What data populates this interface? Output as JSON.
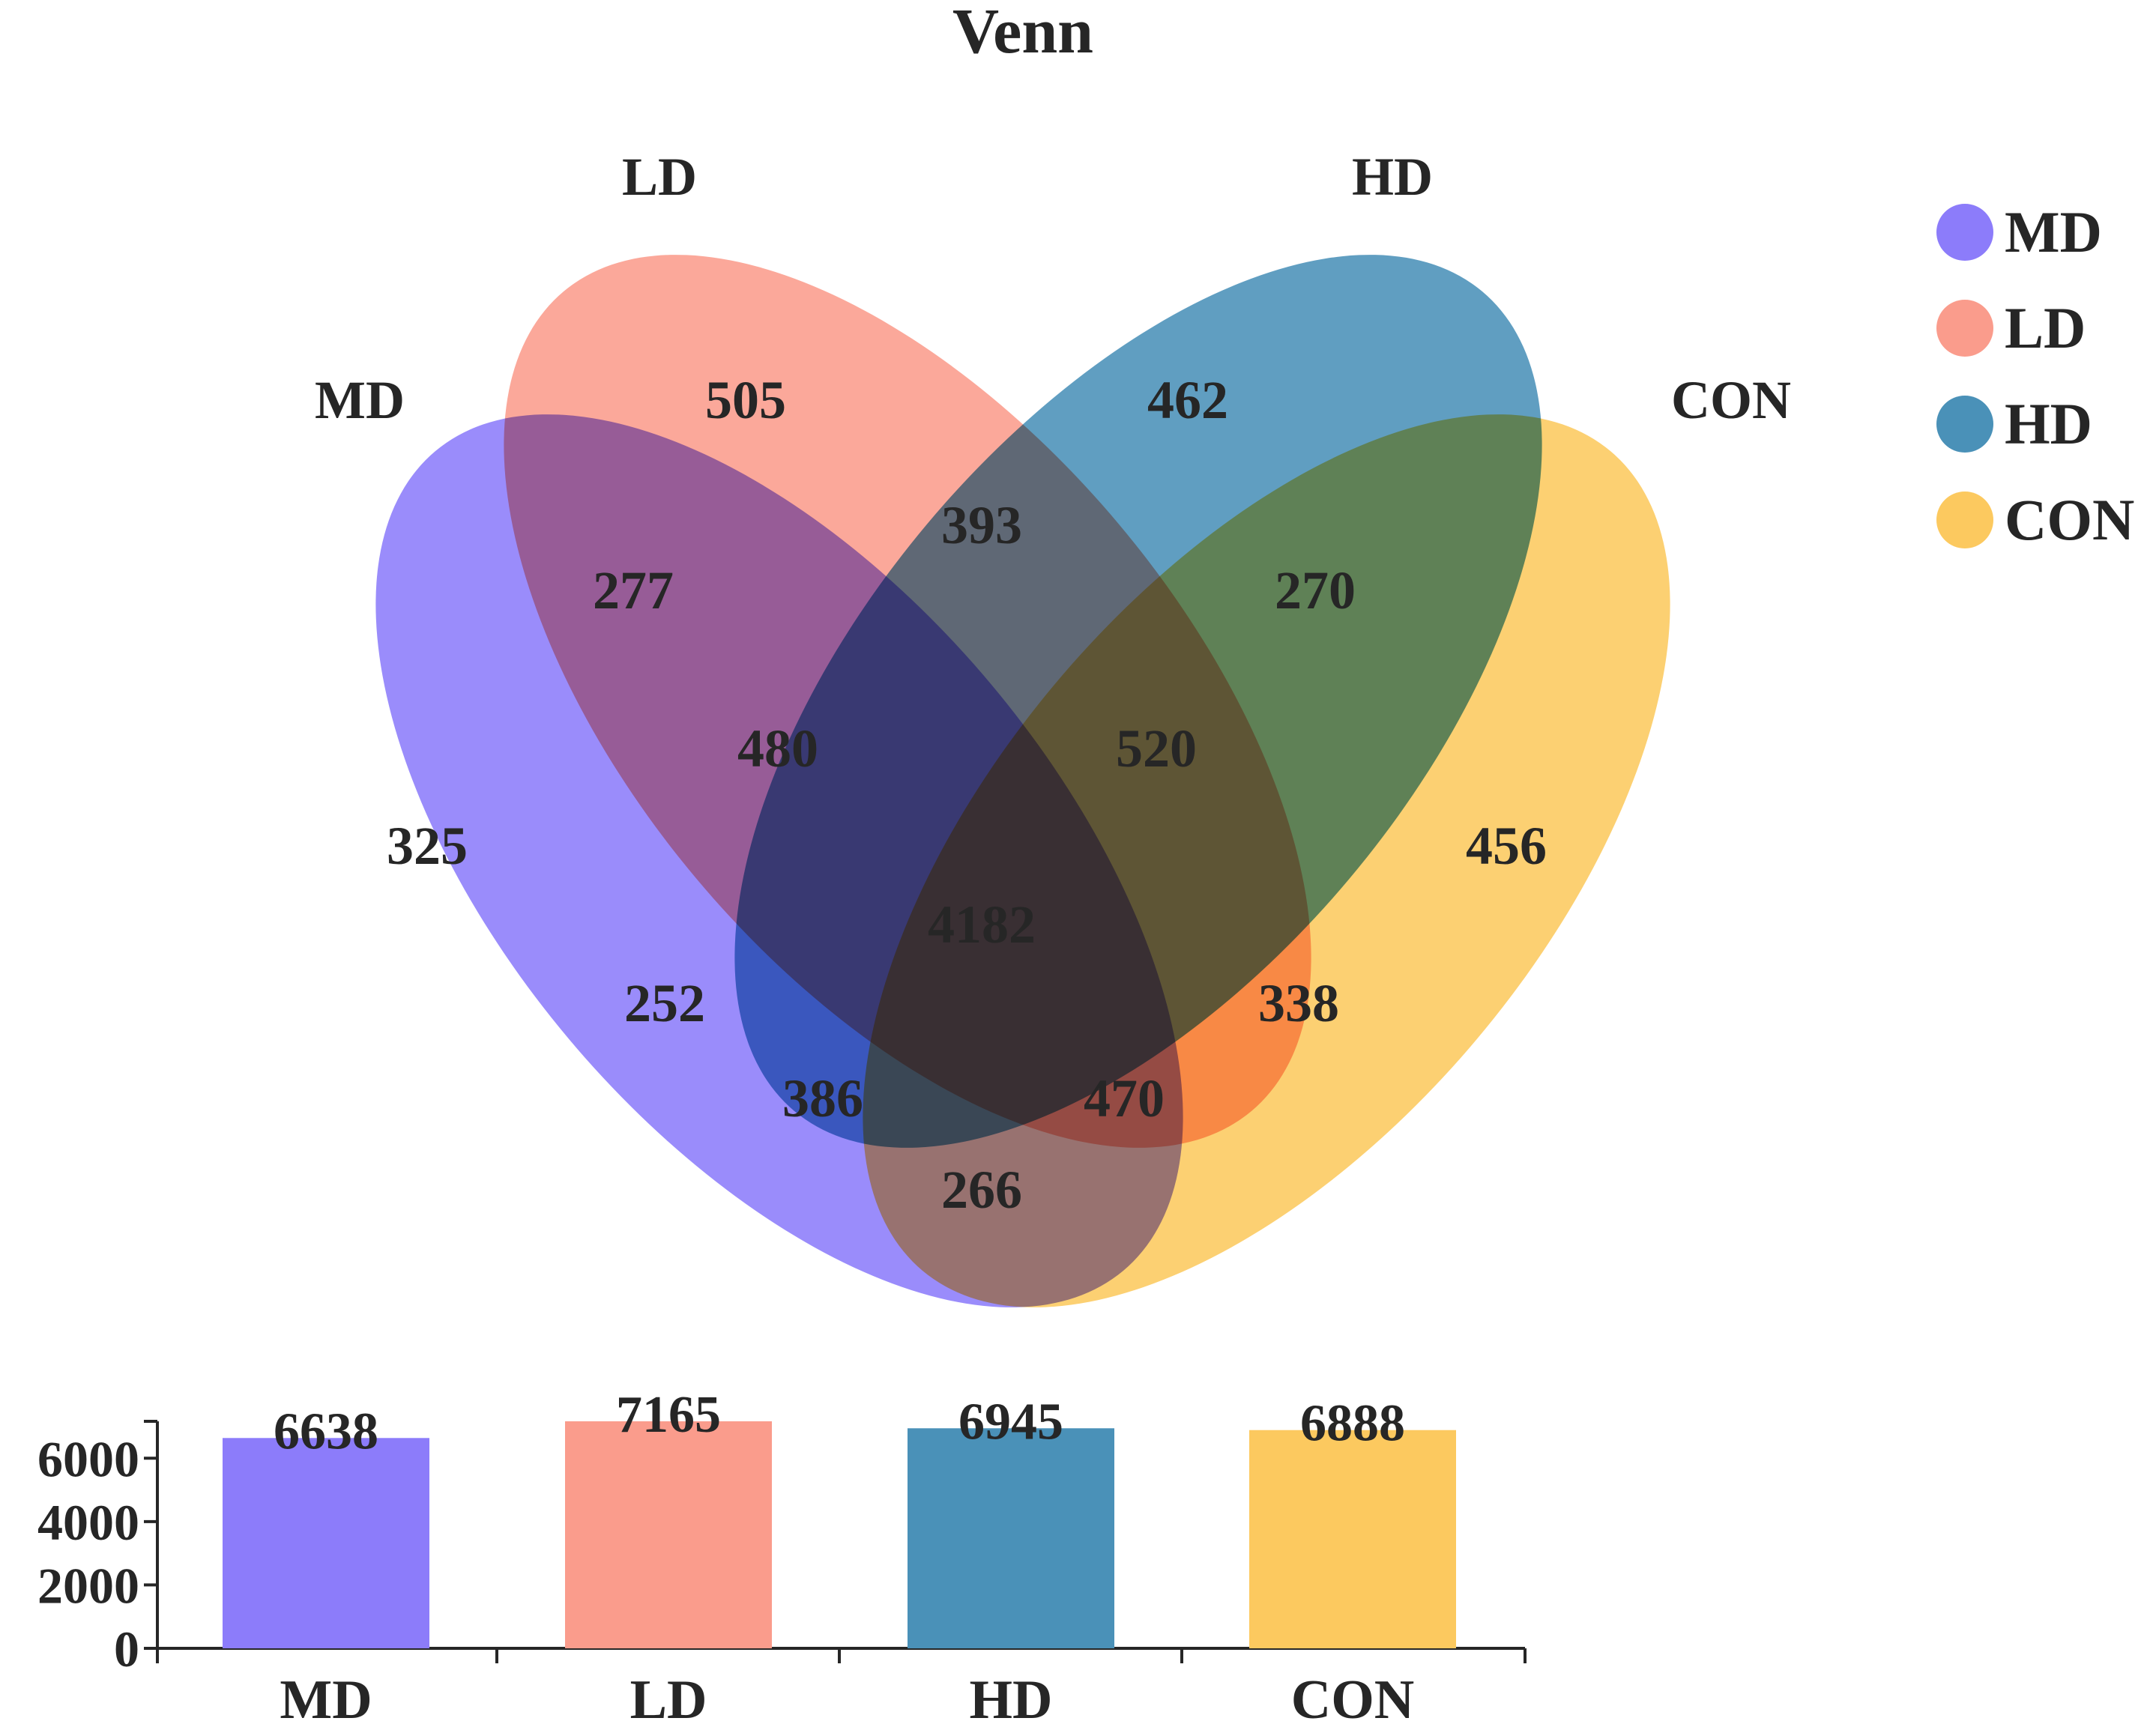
{
  "chart_data": [
    {
      "type": "venn",
      "title": "Venn",
      "sets": [
        {
          "key": "MD",
          "label": "MD",
          "color": "#8c7cfa"
        },
        {
          "key": "LD",
          "label": "LD",
          "color": "#fa9c8c"
        },
        {
          "key": "HD",
          "label": "HD",
          "color": "#4a91b8"
        },
        {
          "key": "CON",
          "label": "CON",
          "color": "#fcc95f"
        }
      ],
      "legend": {
        "placement": "top-right",
        "entries": [
          "MD",
          "LD",
          "HD",
          "CON"
        ]
      },
      "regions": [
        {
          "sets": [
            "MD"
          ],
          "value": 325
        },
        {
          "sets": [
            "LD"
          ],
          "value": 505
        },
        {
          "sets": [
            "HD"
          ],
          "value": 462
        },
        {
          "sets": [
            "CON"
          ],
          "value": 456
        },
        {
          "sets": [
            "MD",
            "LD"
          ],
          "value": 277
        },
        {
          "sets": [
            "LD",
            "HD"
          ],
          "value": 393
        },
        {
          "sets": [
            "HD",
            "CON"
          ],
          "value": 270
        },
        {
          "sets": [
            "MD",
            "CON"
          ],
          "value": 266
        },
        {
          "sets": [
            "MD",
            "HD"
          ],
          "value": 252
        },
        {
          "sets": [
            "LD",
            "CON"
          ],
          "value": 338
        },
        {
          "sets": [
            "MD",
            "LD",
            "HD"
          ],
          "value": 480
        },
        {
          "sets": [
            "LD",
            "HD",
            "CON"
          ],
          "value": 520
        },
        {
          "sets": [
            "MD",
            "HD",
            "CON"
          ],
          "value": 386
        },
        {
          "sets": [
            "MD",
            "LD",
            "CON"
          ],
          "value": 470
        },
        {
          "sets": [
            "MD",
            "LD",
            "HD",
            "CON"
          ],
          "value": 4182
        }
      ]
    },
    {
      "type": "bar",
      "categories": [
        "MD",
        "LD",
        "HD",
        "CON"
      ],
      "values": [
        6638,
        7165,
        6945,
        6888
      ],
      "ylim": [
        0,
        7165
      ],
      "yticks": [
        0,
        2000,
        4000,
        6000
      ],
      "xlabel": "",
      "ylabel": "",
      "colors": [
        "#8c7cfa",
        "#fa9c8c",
        "#4a91b8",
        "#fcc95f"
      ]
    }
  ]
}
